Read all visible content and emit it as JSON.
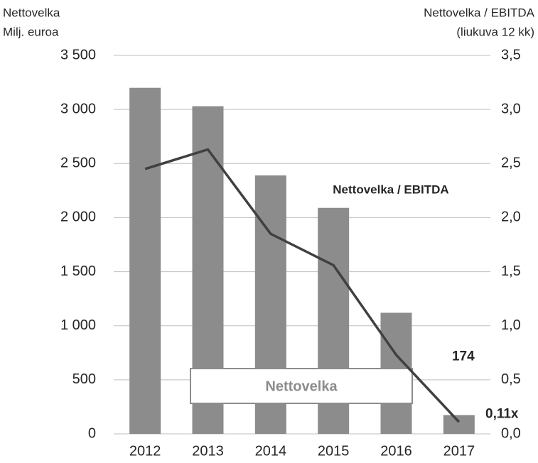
{
  "chart_data": {
    "type": "bar_line",
    "y_label": [
      "Nettovelka",
      "Milj. euroa"
    ],
    "y2_label": [
      "Nettovelka / EBITDA",
      "(liukuva 12 kk)"
    ],
    "categories": [
      "2012",
      "2013",
      "2014",
      "2015",
      "2016",
      "2017"
    ],
    "series": [
      {
        "name": "Nettovelka",
        "type": "bar",
        "color": "#8c8c8c",
        "values": [
          3200,
          3030,
          2390,
          2090,
          1120,
          174
        ],
        "value_labels": [
          null,
          null,
          null,
          null,
          null,
          "174"
        ]
      },
      {
        "name": "Nettovelka / EBITDA",
        "type": "line",
        "axis": "y2",
        "color": "#404040",
        "values": [
          2.45,
          2.63,
          1.85,
          1.56,
          0.73,
          0.11
        ],
        "value_labels": [
          null,
          null,
          null,
          null,
          null,
          "0,11x"
        ]
      }
    ],
    "ylim": [
      0,
      3500
    ],
    "yticks": [
      0,
      500,
      {
        "value": 1000,
        "label": "1 000"
      },
      {
        "value": 1500,
        "label": "1 500"
      },
      {
        "value": 2000,
        "label": "2 000"
      },
      {
        "value": 2500,
        "label": "2 500"
      },
      {
        "value": 3000,
        "label": "3 000"
      },
      {
        "value": 3500,
        "label": "3 500"
      }
    ],
    "y2lim": [
      0,
      3.5
    ],
    "y2ticks": [
      {
        "value": 0,
        "label": "0,0"
      },
      {
        "value": 0.5,
        "label": "0,5"
      },
      {
        "value": 1,
        "label": "1,0"
      },
      {
        "value": 1.5,
        "label": "1,5"
      },
      {
        "value": 2,
        "label": "2,0"
      },
      {
        "value": 2.5,
        "label": "2,5"
      },
      {
        "value": 3,
        "label": "3,0"
      },
      {
        "value": 3.5,
        "label": "3,5"
      }
    ],
    "grid": true
  }
}
